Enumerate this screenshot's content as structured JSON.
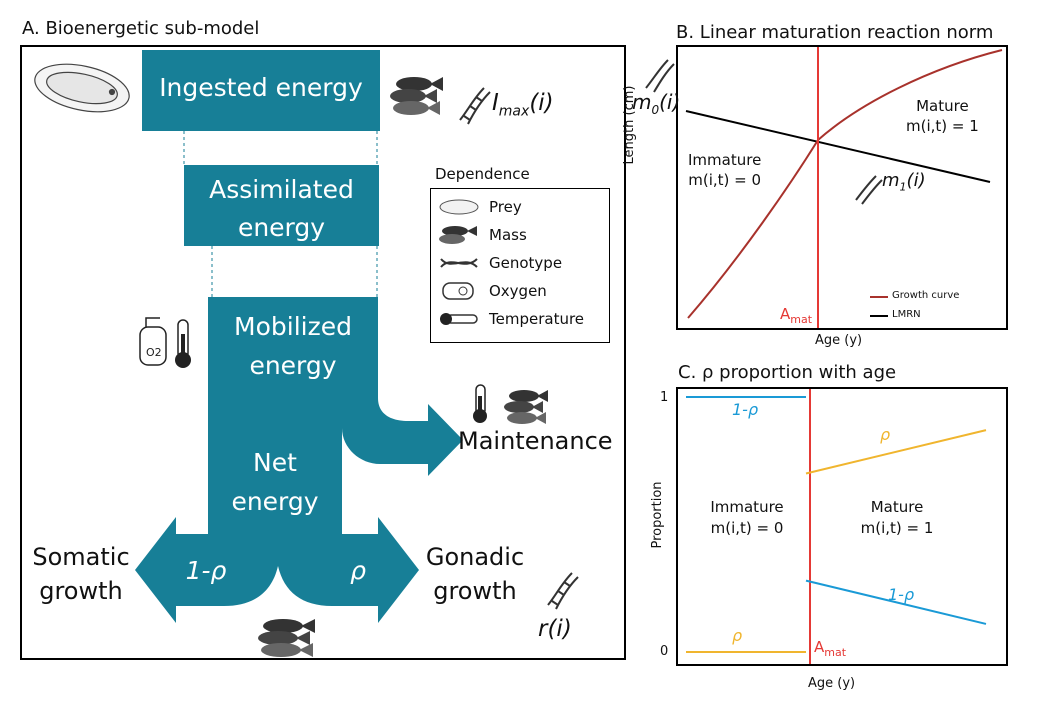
{
  "panel_a": {
    "title": "A. Bioenergetic sub-model",
    "ingested": "Ingested energy",
    "assimilated_1": "Assimilated",
    "assimilated_2": "energy",
    "mobilized_1": "Mobilized",
    "mobilized_2": "energy",
    "net_1": "Net",
    "net_2": "energy",
    "maintenance": "Maintenance",
    "one_minus_rho": "1-ρ",
    "rho": "ρ",
    "somatic_1": "Somatic",
    "somatic_2": "growth",
    "gonadic_1": "Gonadic",
    "gonadic_2": "growth",
    "imax_base": "I",
    "imax_sub": "max",
    "imax_tail": "(i)",
    "r_i": "r(i)",
    "legend": {
      "title": "Dependence",
      "items": [
        {
          "label": "Prey",
          "icon": "prey-icon"
        },
        {
          "label": "Mass",
          "icon": "fish-mass-icon"
        },
        {
          "label": "Genotype",
          "icon": "dna-icon"
        },
        {
          "label": "Oxygen",
          "icon": "oxygen-tank-icon"
        },
        {
          "label": "Temperature",
          "icon": "thermometer-icon"
        }
      ]
    },
    "colors": {
      "teal": "#177f97"
    }
  },
  "chart_data": [
    {
      "type": "line",
      "title": "B. Linear maturation reaction norm",
      "xlabel": "Age (y)",
      "ylabel": "Length (cm)",
      "amat_base": "A",
      "amat_sub": "mat",
      "m0_base": "m",
      "m0_sub": "0",
      "m0_tail": "(i)",
      "m1_base": "m",
      "m1_sub": "1",
      "m1_tail": "(i)",
      "immature_1": "Immature",
      "immature_2": "m(i,t) = 0",
      "mature_1": "Mature",
      "mature_2": "m(i,t) = 1",
      "legend_position": "bottom-right",
      "series": [
        {
          "name": "Growth curve",
          "color": "#a8322c"
        },
        {
          "name": "LMRN",
          "color": "#000000"
        }
      ]
    },
    {
      "type": "line",
      "title": "C. ρ proportion with age",
      "xlabel": "Age (y)",
      "ylabel": "Proportion",
      "yticks": [
        "0",
        "1"
      ],
      "ylim": [
        0,
        1
      ],
      "amat_base": "A",
      "amat_sub": "mat",
      "immature_1": "Immature",
      "immature_2": "m(i,t) = 0",
      "mature_1": "Mature",
      "mature_2": "m(i,t) = 1",
      "series": [
        {
          "label": "1-ρ",
          "color": "#1a9ad6",
          "segments": [
            [
              {
                "x": 0,
                "y": 1
              },
              {
                "x": 0.4,
                "y": 1
              }
            ],
            [
              {
                "x": 0.4,
                "y": 0.28
              },
              {
                "x": 1,
                "y": 0.11
              }
            ]
          ]
        },
        {
          "label": "ρ",
          "color": "#f0b52e",
          "segments": [
            [
              {
                "x": 0,
                "y": 0
              },
              {
                "x": 0.4,
                "y": 0
              }
            ],
            [
              {
                "x": 0.4,
                "y": 0.7
              },
              {
                "x": 1,
                "y": 0.87
              }
            ]
          ]
        }
      ]
    }
  ]
}
